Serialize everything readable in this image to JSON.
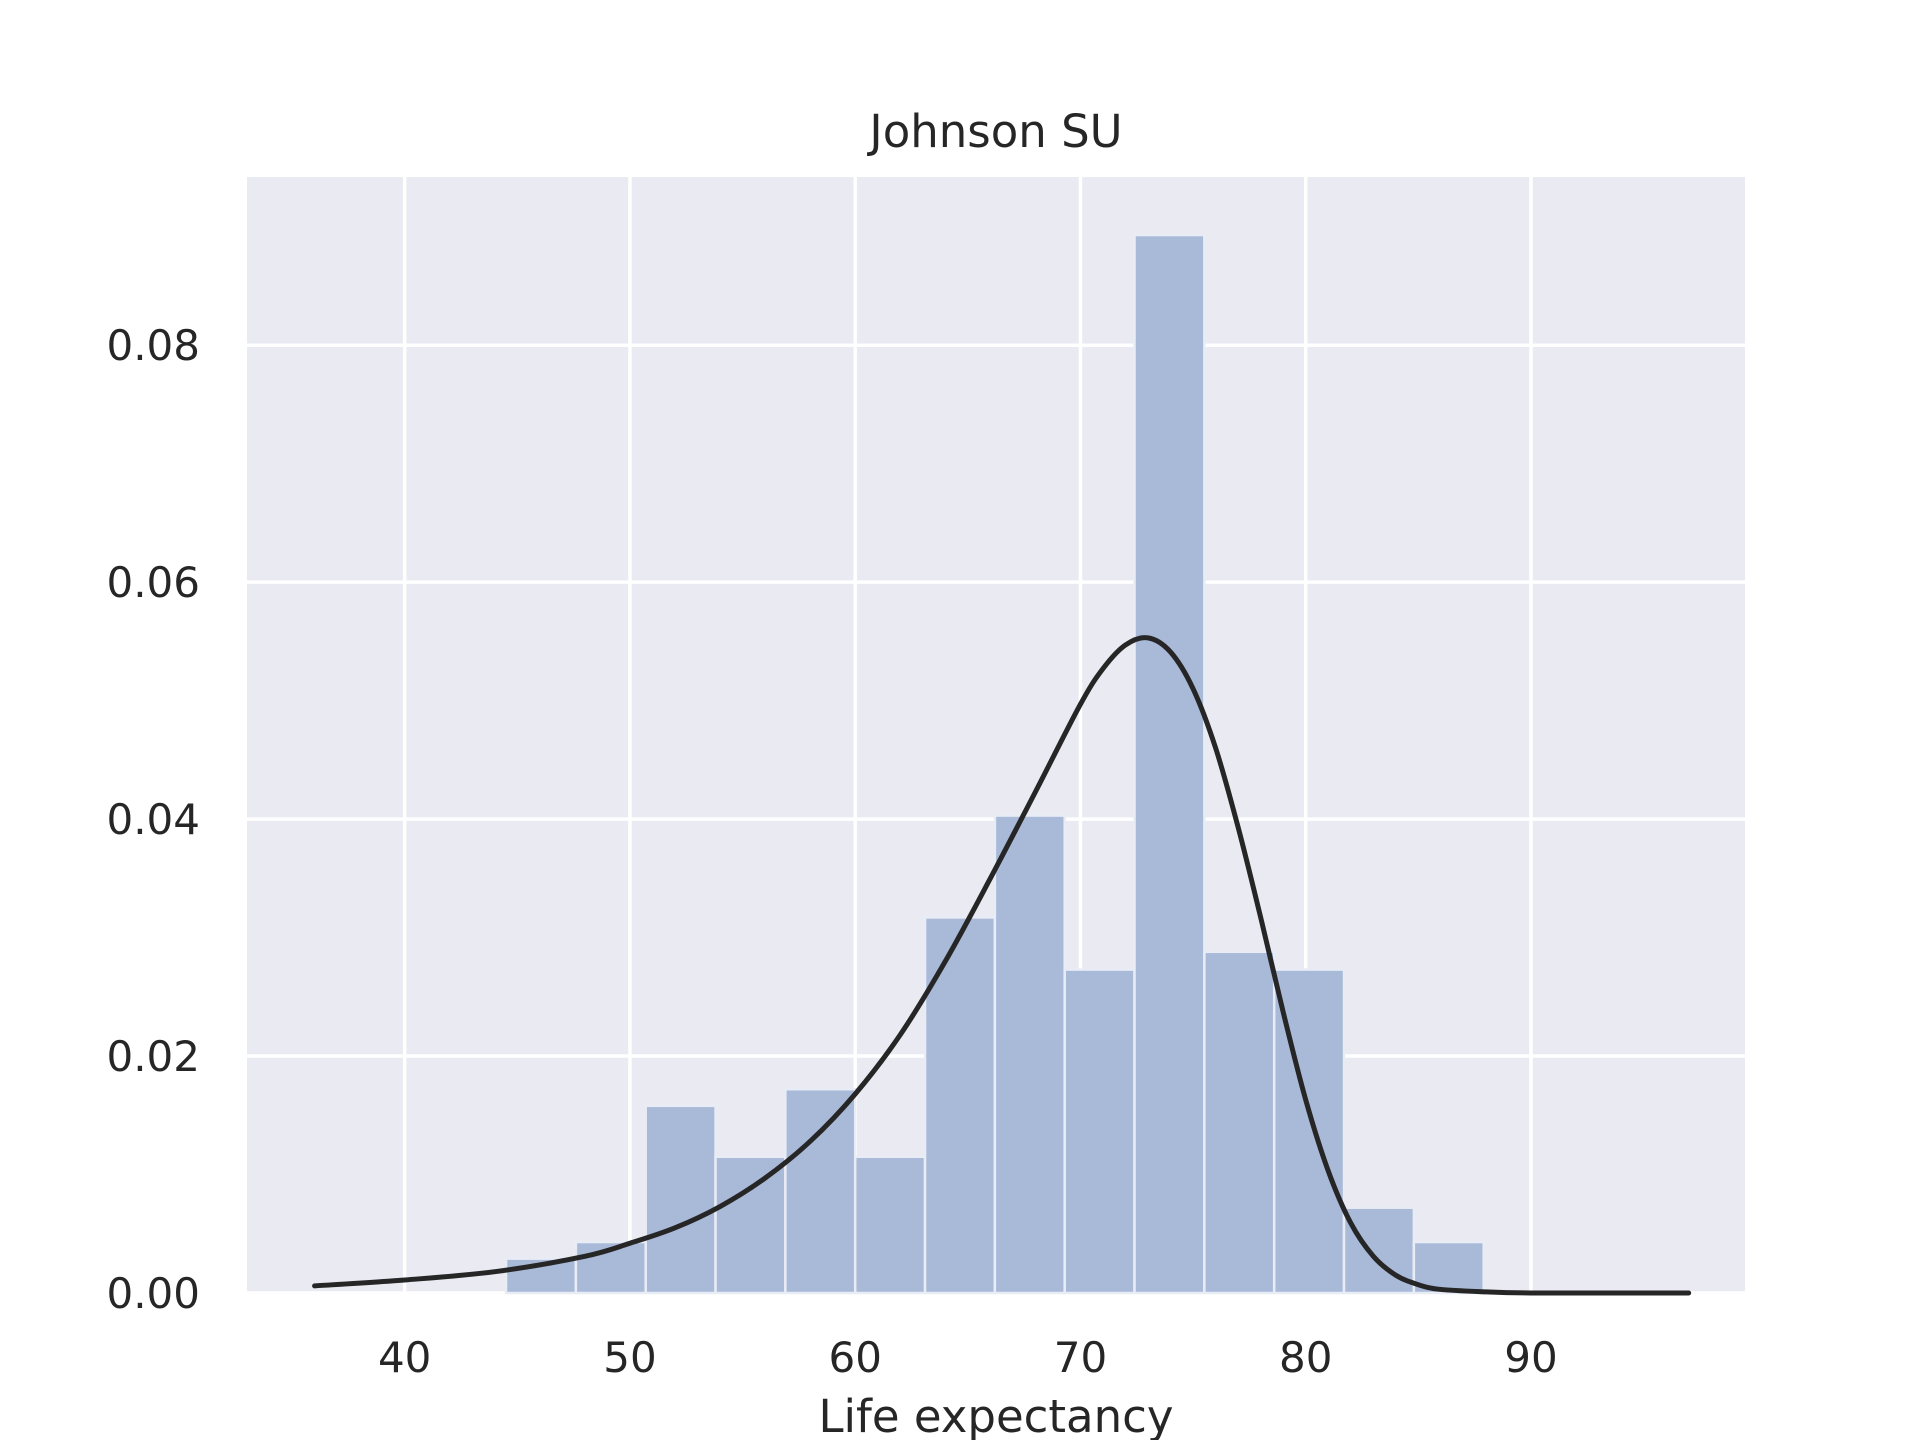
{
  "chart_data": {
    "type": "bar",
    "title": "Johnson SU",
    "xlabel": "Life expectancy",
    "ylabel": "",
    "xlim": [
      33.0,
      99.5
    ],
    "ylim": [
      0.0,
      0.0942
    ],
    "xticks": [
      40,
      50,
      60,
      70,
      80,
      90
    ],
    "yticks": [
      0.0,
      0.02,
      0.04,
      0.06,
      0.08
    ],
    "ytick_labels": [
      "0.00",
      "0.02",
      "0.04",
      "0.06",
      "0.08"
    ],
    "grid": true,
    "legend": "none",
    "colors": {
      "plot_background": "#eaeaf2",
      "grid": "#ffffff",
      "bars": "#a9b9d8",
      "bar_edge": "#e8ecf5",
      "curve": "#262626",
      "text": "#262626"
    },
    "histogram": {
      "bin_edges": [
        44.5,
        47.6,
        50.7,
        53.8,
        56.9,
        60.0,
        63.1,
        66.2,
        69.3,
        72.4,
        75.5,
        78.6,
        81.7,
        84.8,
        87.9
      ],
      "densities": [
        0.0029,
        0.0043,
        0.0158,
        0.0115,
        0.0172,
        0.0115,
        0.0317,
        0.0403,
        0.0273,
        0.0893,
        0.0288,
        0.0273,
        0.0072,
        0.0043
      ]
    },
    "series": [
      {
        "type": "line",
        "x": [
          36,
          40,
          44,
          48,
          50,
          52,
          54,
          56,
          58,
          60,
          62,
          64,
          66,
          68,
          70,
          71,
          72,
          73,
          74,
          75,
          76,
          77,
          78,
          79,
          80,
          81,
          82,
          83,
          84,
          85,
          86,
          88,
          90,
          93,
          97
        ],
        "values": [
          0.0006,
          0.0011,
          0.0018,
          0.0031,
          0.0042,
          0.0055,
          0.0073,
          0.0097,
          0.0128,
          0.0168,
          0.0218,
          0.028,
          0.035,
          0.0423,
          0.0497,
          0.0527,
          0.0547,
          0.0553,
          0.0541,
          0.051,
          0.046,
          0.0393,
          0.0317,
          0.0237,
          0.0163,
          0.0103,
          0.0059,
          0.0031,
          0.0015,
          0.0007,
          0.0003,
          0.0001,
          0.0,
          0.0,
          0.0
        ]
      }
    ]
  }
}
